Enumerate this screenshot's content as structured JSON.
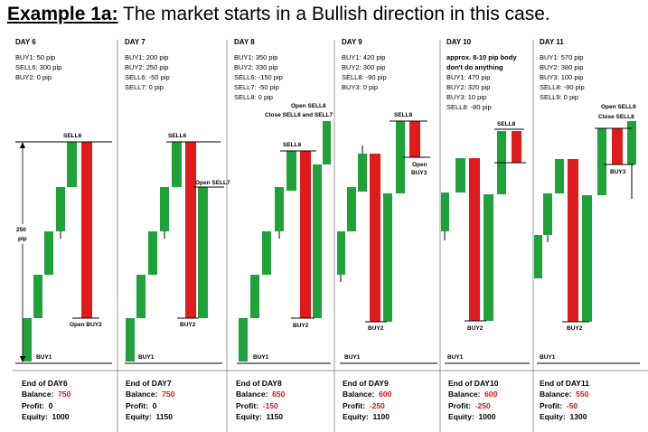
{
  "title_prefix": "Example 1a:",
  "title_text": " The market starts in a Bullish direction in this case.",
  "colors": {
    "bull": "#1fa23a",
    "bear": "#e01b1b",
    "line": "#000000",
    "red_text": "#e01010"
  },
  "range_label": {
    "top": "250",
    "bottom": "pip"
  },
  "days": [
    {
      "day": "DAY 6",
      "positions": [
        "BUY1: 50 pip",
        "SELL6: 300 pip",
        "BUY2: 0 pip"
      ],
      "labels": {
        "sell": "SELL6",
        "open_buy": "Open BUY2",
        "buy1": "BUY1"
      },
      "summary": {
        "end": "End of DAY6",
        "balance_label": "Balance:",
        "balance": "750",
        "profit_label": "Profit:",
        "profit": "0",
        "equity_label": "Equity:",
        "equity": "1000"
      }
    },
    {
      "day": "DAY 7",
      "positions": [
        "BUY1: 200 pip",
        "BUY2: 250 pip",
        "SELL6: -50 pip",
        "SELL7: 0 pip"
      ],
      "labels": {
        "sell": "SELL6",
        "open_sell": "Open SELL7",
        "buy2": "BUY2",
        "buy1": "BUY1"
      },
      "summary": {
        "end": "End of DAY7",
        "balance_label": "Balance:",
        "balance": "750",
        "profit_label": "Profit:",
        "profit": "0",
        "equity_label": "Equity:",
        "equity": "1150"
      }
    },
    {
      "day": "DAY 8",
      "positions": [
        "BUY1: 350 pip",
        "BUY2: 330 pip",
        "SELL6: -150 pip",
        "SELL7: -50 pip",
        "SELL8: 0 pip"
      ],
      "labels": {
        "open_sell": "Open SELL8",
        "close_sell": "Close SELL6 and SELL7",
        "sell": "SELL6",
        "buy2": "BUY2",
        "buy1": "BUY1"
      },
      "summary": {
        "end": "End of DAY8",
        "balance_label": "Balance:",
        "balance": "650",
        "profit_label": "Profit:",
        "profit": "-150",
        "equity_label": "Equity:",
        "equity": "1150"
      }
    },
    {
      "day": "DAY 9",
      "positions": [
        "BUY1: 420 pip",
        "BUY2: 300 pip",
        "SELL8: -90 pip",
        "BUY3: 0 pip"
      ],
      "labels": {
        "sell": "SELL8",
        "open_buy": "Open",
        "open_buy2": "BUY3",
        "buy2": "BUY2",
        "buy1": "BUY1"
      },
      "summary": {
        "end": "End of DAY9",
        "balance_label": "Balance:",
        "balance": "600",
        "profit_label": "Profit:",
        "profit": "-250",
        "equity_label": "Equity:",
        "equity": "1100"
      }
    },
    {
      "day": "DAY 10",
      "note": [
        "approx. 8-10 pip body",
        "don't do anything"
      ],
      "positions": [
        "BUY1: 470 pip",
        "BUY2: 320 pip",
        "BUY3: 10 pip",
        "SELL8: -80 pip"
      ],
      "labels": {
        "sell": "SELL8",
        "buy2": "BUY2",
        "buy1": "BUY1"
      },
      "summary": {
        "end": "End of DAY10",
        "balance_label": "Balance:",
        "balance": "600",
        "profit_label": "Profit:",
        "profit": "-250",
        "equity_label": "Equity:",
        "equity": "1000"
      }
    },
    {
      "day": "DAY 11",
      "positions": [
        "BUY1: 570 pip",
        "BUY2: 380 pip",
        "BUY3: 100 pip",
        "SELL8: -90 pip",
        "SELL9: 0 pip"
      ],
      "labels": {
        "open_sell": "Open SELL9",
        "close_sell": "Close SELL8",
        "buy3": "BUY3",
        "buy2": "BUY2",
        "buy1": "BUY1"
      },
      "summary": {
        "end": "End of DAY11",
        "balance_label": "Balance:",
        "balance": "550",
        "profit_label": "Profit:",
        "profit": "-50",
        "equity_label": "Equity:",
        "equity": "1300"
      }
    }
  ]
}
